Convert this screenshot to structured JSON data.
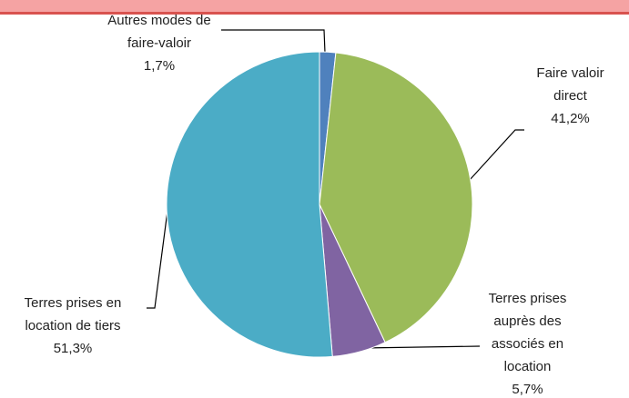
{
  "chart_data": {
    "type": "pie",
    "categories": [
      "Autres modes de faire-valoir",
      "Faire valoir direct",
      "Terres prises auprès des associés en location",
      "Terres prises en location de tiers"
    ],
    "values": [
      1.7,
      41.2,
      5.7,
      51.3
    ],
    "value_labels": [
      "1,7%",
      "41,2%",
      "5,7%",
      "51,3%"
    ],
    "colors": [
      "#4f81bd",
      "#9bbb59",
      "#8064a2",
      "#4bacc6"
    ]
  }
}
